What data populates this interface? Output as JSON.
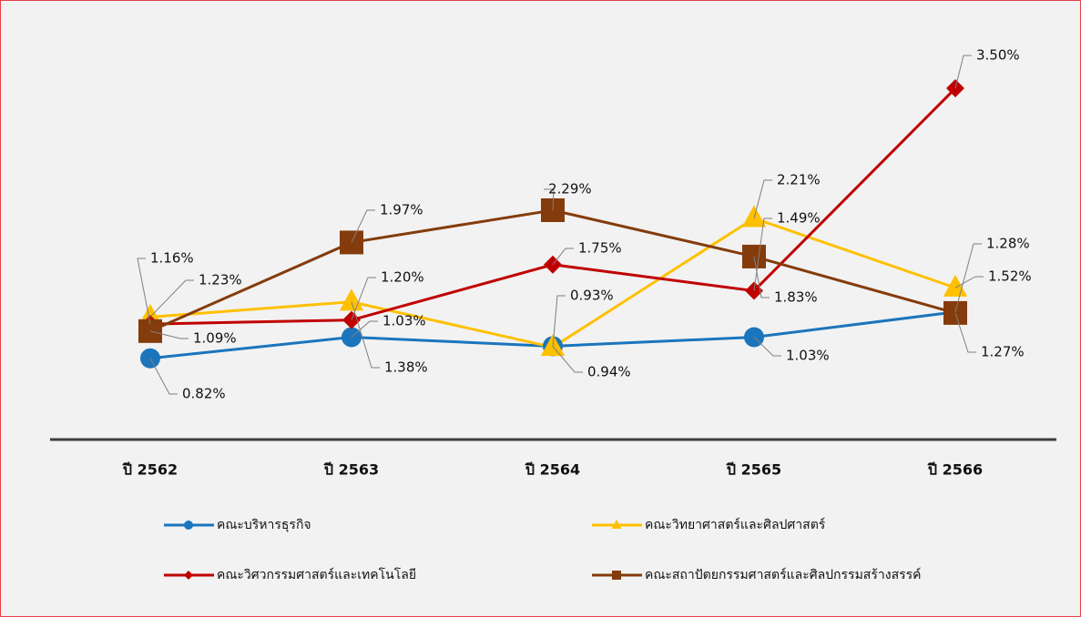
{
  "chart_data": {
    "type": "line",
    "categories": [
      "ปี 2562",
      "ปี 2563",
      "ปี 2564",
      "ปี 2565",
      "ปี 2566"
    ],
    "ylim": [
      0,
      3.9
    ],
    "series": [
      {
        "name": "คณะบริหารธุรกิจ",
        "color": "#1b75bc",
        "marker": "circle",
        "values": [
          0.82,
          1.03,
          0.94,
          1.03,
          1.28
        ],
        "value_labels": [
          "0.82%",
          "1.03%",
          "0.94%",
          "1.03%",
          "1.28%"
        ]
      },
      {
        "name": "คณะวิทยาศาสตร์และศิลปศาสตร์",
        "color": "#ffc000",
        "marker": "triangle",
        "values": [
          1.23,
          1.38,
          0.93,
          2.21,
          1.52
        ],
        "value_labels": [
          "1.23%",
          "1.38%",
          "0.93%",
          "2.21%",
          "1.52%"
        ]
      },
      {
        "name": "คณะวิศวกรรมศาสตร์และเทคโนโลยี",
        "color": "#c00000",
        "marker": "diamond",
        "values": [
          1.16,
          1.2,
          1.75,
          1.49,
          3.5
        ],
        "value_labels": [
          "1.16%",
          "1.20%",
          "1.75%",
          "1.49%",
          "3.50%"
        ]
      },
      {
        "name": "คณะสถาปัตยกรรมศาสตร์และศิลปกรรมสร้างสรรค์",
        "color": "#843c0c",
        "marker": "square",
        "values": [
          1.09,
          1.97,
          2.29,
          1.83,
          1.27
        ],
        "value_labels": [
          "1.09%",
          "1.97%",
          "2.29%",
          "1.83%",
          "1.27%"
        ]
      }
    ]
  }
}
